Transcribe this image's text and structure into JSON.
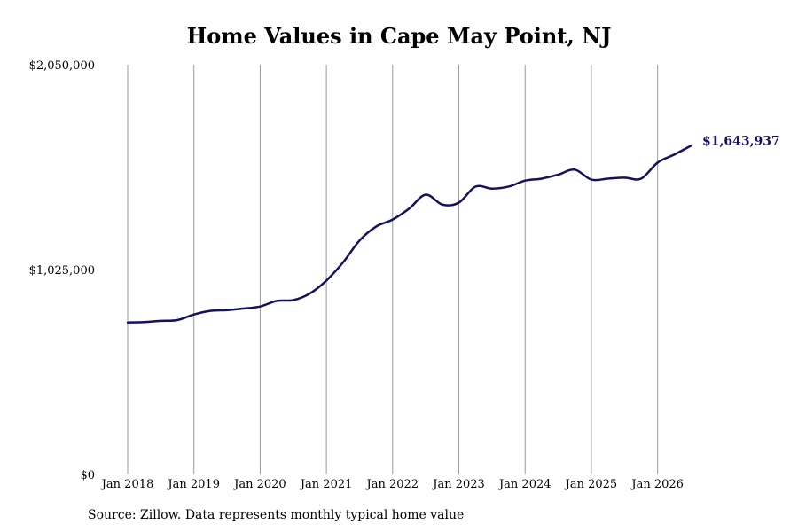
{
  "chart_data": {
    "type": "line",
    "title": "Home Values in Cape May Point, NJ",
    "source": "Source: Zillow. Data represents monthly typical home value",
    "ylim": [
      0,
      2050000
    ],
    "y_ticks": [
      {
        "value": 0,
        "label": "$0"
      },
      {
        "value": 1025000,
        "label": "$1,025,000"
      },
      {
        "value": 2050000,
        "label": "$2,050,000"
      }
    ],
    "x_ticks": [
      {
        "value": "2018-01",
        "label": "Jan 2018"
      },
      {
        "value": "2019-01",
        "label": "Jan 2019"
      },
      {
        "value": "2020-01",
        "label": "Jan 2020"
      },
      {
        "value": "2021-01",
        "label": "Jan 2021"
      },
      {
        "value": "2022-01",
        "label": "Jan 2022"
      },
      {
        "value": "2023-01",
        "label": "Jan 2023"
      },
      {
        "value": "2024-01",
        "label": "Jan 2024"
      },
      {
        "value": "2025-01",
        "label": "Jan 2025"
      },
      {
        "value": "2026-01",
        "label": "Jan 2026"
      }
    ],
    "xlim": [
      "2018-01",
      "2026-07"
    ],
    "grid": {
      "vertical": true,
      "horizontal": false
    },
    "line_color": "#12125e",
    "end_label_color": "#12125e",
    "end_label": "$1,643,937",
    "series": [
      {
        "points": [
          [
            "2018-01",
            760000
          ],
          [
            "2018-04",
            762000
          ],
          [
            "2018-07",
            768000
          ],
          [
            "2018-10",
            772000
          ],
          [
            "2019-01",
            800000
          ],
          [
            "2019-04",
            818000
          ],
          [
            "2019-07",
            822000
          ],
          [
            "2019-10",
            830000
          ],
          [
            "2020-01",
            840000
          ],
          [
            "2020-04",
            868000
          ],
          [
            "2020-07",
            872000
          ],
          [
            "2020-10",
            905000
          ],
          [
            "2021-01",
            970000
          ],
          [
            "2021-04",
            1060000
          ],
          [
            "2021-07",
            1170000
          ],
          [
            "2021-10",
            1240000
          ],
          [
            "2022-01",
            1275000
          ],
          [
            "2022-04",
            1330000
          ],
          [
            "2022-07",
            1400000
          ],
          [
            "2022-10",
            1350000
          ],
          [
            "2023-01",
            1360000
          ],
          [
            "2023-04",
            1440000
          ],
          [
            "2023-07",
            1430000
          ],
          [
            "2023-10",
            1440000
          ],
          [
            "2024-01",
            1470000
          ],
          [
            "2024-04",
            1480000
          ],
          [
            "2024-07",
            1500000
          ],
          [
            "2024-10",
            1525000
          ],
          [
            "2025-01",
            1475000
          ],
          [
            "2025-04",
            1480000
          ],
          [
            "2025-07",
            1485000
          ],
          [
            "2025-10",
            1480000
          ],
          [
            "2026-01",
            1560000
          ],
          [
            "2026-04",
            1600000
          ],
          [
            "2026-07",
            1643937
          ]
        ]
      }
    ]
  }
}
